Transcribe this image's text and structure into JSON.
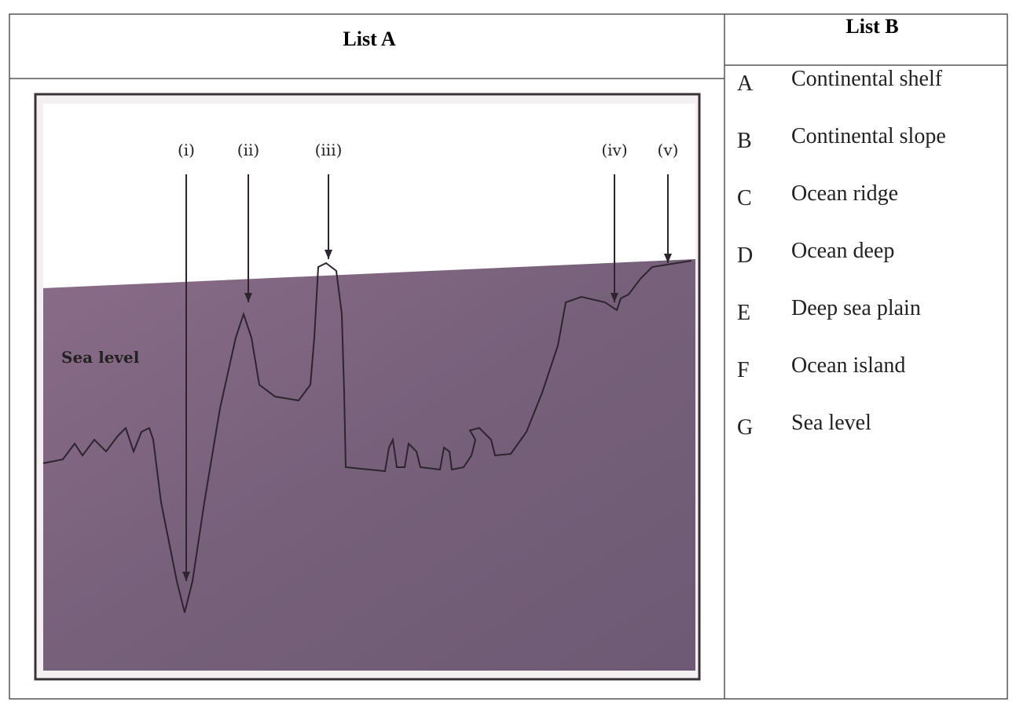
{
  "table": {
    "headers": [
      "List A",
      "List B"
    ],
    "diagram": {
      "markers": [
        "(i)",
        "(ii)",
        "(iii)",
        "(iv)",
        "(v)"
      ],
      "sea_level_label": "Sea level"
    },
    "list_b": [
      {
        "letter": "A",
        "text": "Continental shelf"
      },
      {
        "letter": "B",
        "text": "Continental slope"
      },
      {
        "letter": "C",
        "text": "Ocean ridge"
      },
      {
        "letter": "D",
        "text": "Ocean deep"
      },
      {
        "letter": "E",
        "text": "Deep sea plain"
      },
      {
        "letter": "F",
        "text": "Ocean island"
      },
      {
        "letter": "G",
        "text": "Sea level"
      }
    ]
  }
}
